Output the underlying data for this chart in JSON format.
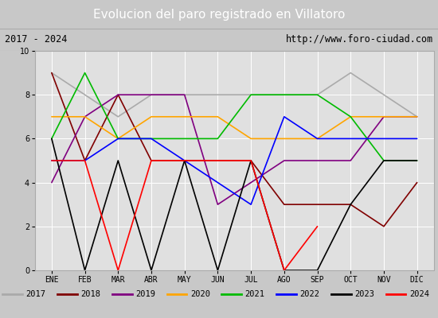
{
  "title": "Evolucion del paro registrado en Villatoro",
  "subtitle_left": "2017 - 2024",
  "subtitle_right": "http://www.foro-ciudad.com",
  "ylim": [
    0,
    10
  ],
  "months": [
    "ENE",
    "FEB",
    "MAR",
    "ABR",
    "MAY",
    "JUN",
    "JUL",
    "AGO",
    "SEP",
    "OCT",
    "NOV",
    "DIC"
  ],
  "series": {
    "2017": {
      "color": "#aaaaaa",
      "data": [
        9,
        null,
        7,
        8,
        8,
        8,
        8,
        8,
        8,
        9,
        8,
        7
      ]
    },
    "2018": {
      "color": "#800000",
      "data": [
        9,
        5,
        8,
        5,
        5,
        5,
        5,
        3,
        3,
        3,
        2,
        4
      ]
    },
    "2019": {
      "color": "#800080",
      "data": [
        4,
        7,
        8,
        8,
        8,
        3,
        4,
        5,
        5,
        5,
        7,
        7
      ]
    },
    "2020": {
      "color": "#ffa500",
      "data": [
        7,
        7,
        6,
        7,
        7,
        7,
        6,
        6,
        6,
        7,
        7,
        7
      ]
    },
    "2021": {
      "color": "#00bb00",
      "data": [
        6,
        9,
        6,
        6,
        6,
        6,
        8,
        8,
        8,
        7,
        5,
        5
      ]
    },
    "2022": {
      "color": "#0000ff",
      "data": [
        5,
        5,
        6,
        6,
        5,
        4,
        3,
        7,
        6,
        6,
        6,
        6
      ]
    },
    "2023": {
      "color": "#000000",
      "data": [
        6,
        0,
        5,
        0,
        5,
        0,
        5,
        0,
        0,
        3,
        5,
        5
      ]
    },
    "2024": {
      "color": "#ff0000",
      "data": [
        5,
        5,
        0,
        5,
        5,
        5,
        5,
        0,
        2,
        null,
        null,
        null
      ]
    }
  },
  "fig_bg": "#c8c8c8",
  "plot_bg": "#e0e0e0",
  "title_bg": "#4477bb",
  "title_color": "#ffffff",
  "info_bg": "#f0f0f0",
  "legend_bg": "#f0f0f0",
  "border_color": "#aaaaaa"
}
